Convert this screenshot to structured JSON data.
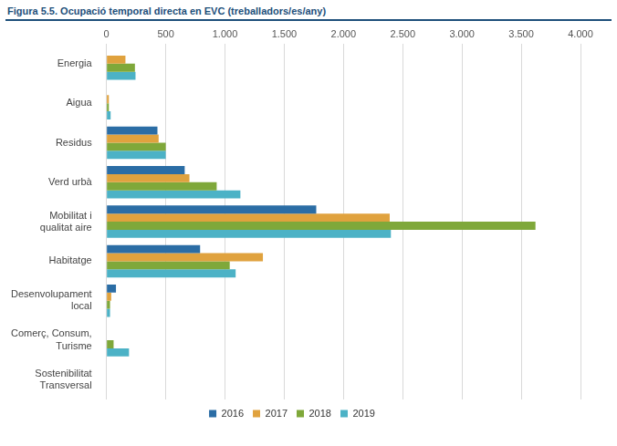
{
  "chart_data": {
    "type": "bar",
    "orientation": "horizontal",
    "title": "Figura 5.5. Ocupació temporal directa en EVC (treballadors/es/any)",
    "categories": [
      "Energia",
      "Aigua",
      "Residus",
      "Verd urbà",
      [
        "Mobilitat i",
        "qualitat aire"
      ],
      "Habitatge",
      [
        "Desenvolupament",
        "local"
      ],
      [
        "Comerç, Consum,",
        "Turisme"
      ],
      [
        "Sostenibilitat",
        "Transversal"
      ]
    ],
    "series": [
      {
        "name": "2016",
        "color": "#2b6da5",
        "values": [
          0,
          0,
          430,
          660,
          1770,
          790,
          80,
          0,
          0
        ]
      },
      {
        "name": "2017",
        "color": "#e0a23e",
        "values": [
          160,
          20,
          440,
          700,
          2390,
          1320,
          40,
          0,
          0
        ]
      },
      {
        "name": "2018",
        "color": "#7fa83a",
        "values": [
          240,
          20,
          500,
          930,
          3620,
          1040,
          30,
          60,
          0
        ]
      },
      {
        "name": "2019",
        "color": "#4cb2c6",
        "values": [
          245,
          35,
          500,
          1130,
          2400,
          1090,
          30,
          190,
          0
        ]
      }
    ],
    "xlim": [
      0,
      4000
    ],
    "xticks": [
      0,
      500,
      {
        "value": 1000,
        "label": "1.000"
      },
      {
        "value": 1500,
        "label": "1.500"
      },
      {
        "value": 2000,
        "label": "2.000"
      },
      {
        "value": 2500,
        "label": "2.500"
      },
      {
        "value": 3000,
        "label": "3.000"
      },
      {
        "value": 3500,
        "label": "3.500"
      },
      {
        "value": 4000,
        "label": "4.000"
      }
    ],
    "grid": true,
    "legend": "bottom"
  }
}
